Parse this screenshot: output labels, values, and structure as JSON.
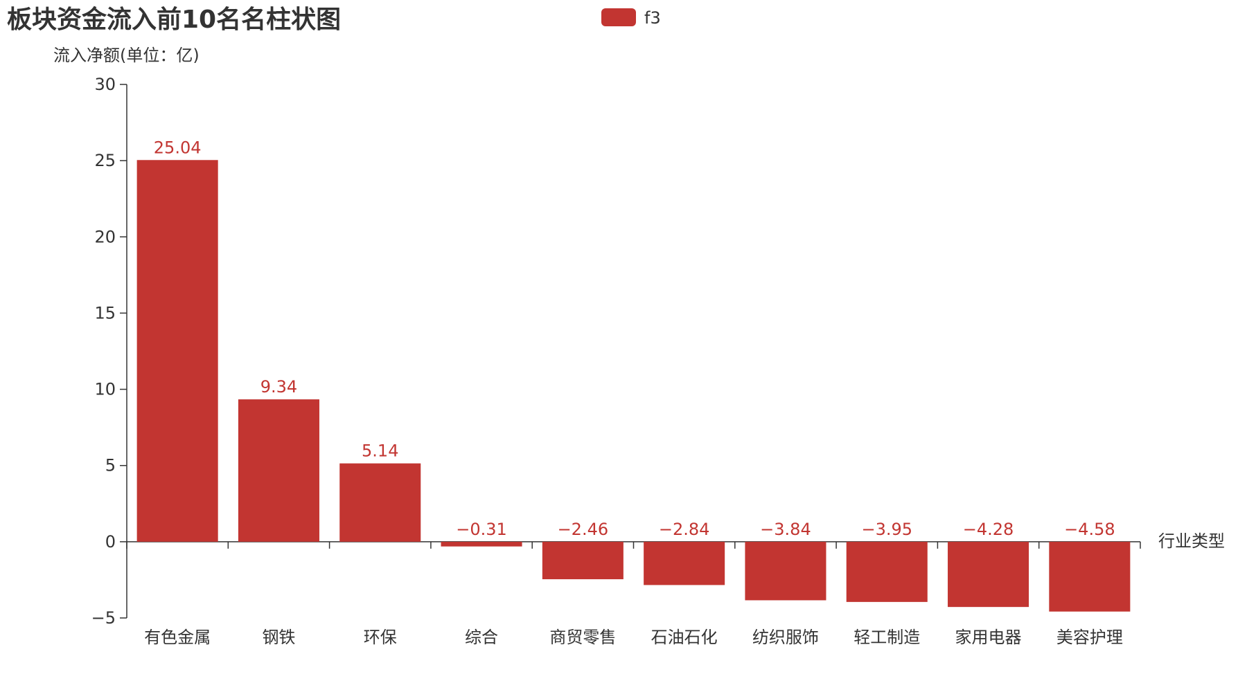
{
  "chart_data": {
    "type": "bar",
    "title": "板块资金流入前10名名柱状图",
    "ylabel": "流入净额(单位：亿)",
    "xlabel": "行业类型",
    "legend": {
      "label": "f3",
      "position": "top-center"
    },
    "series_color": "#c23531",
    "categories": [
      "有色金属",
      "钢铁",
      "环保",
      "综合",
      "商贸零售",
      "石油石化",
      "纺织服饰",
      "轻工制造",
      "家用电器",
      "美容护理"
    ],
    "values": [
      25.04,
      9.34,
      5.14,
      -0.31,
      -2.46,
      -2.84,
      -3.84,
      -3.95,
      -4.28,
      -4.58
    ],
    "data_labels": [
      "25.04",
      "9.34",
      "5.14",
      "−0.31",
      "−2.46",
      "−2.84",
      "−3.84",
      "−3.95",
      "−4.28",
      "−4.58"
    ],
    "ylim": [
      -5,
      30
    ],
    "yticks": [
      -5,
      0,
      5,
      10,
      15,
      20,
      25,
      30
    ],
    "ytick_labels": [
      "−5",
      "0",
      "5",
      "10",
      "15",
      "20",
      "25",
      "30"
    ],
    "grid": false
  }
}
